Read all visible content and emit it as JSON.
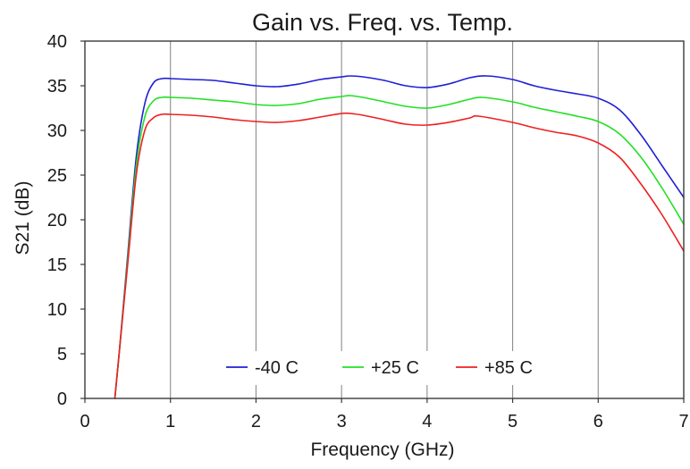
{
  "chart_data": {
    "type": "line",
    "title": "Gain vs. Freq. vs. Temp.",
    "xlabel": "Frequency (GHz)",
    "ylabel": "S21 (dB)",
    "xlim": [
      0,
      7
    ],
    "ylim": [
      0,
      40
    ],
    "x_ticks": [
      "0",
      "1",
      "2",
      "3",
      "4",
      "5",
      "6",
      "7"
    ],
    "y_ticks": [
      "0",
      "5",
      "10",
      "15",
      "20",
      "25",
      "30",
      "35",
      "40"
    ],
    "grid": {
      "x": true,
      "y": false
    },
    "legend_position": "bottom-center",
    "series": [
      {
        "name": "-40 C",
        "color": "#1f1fd6",
        "points": [
          [
            0.35,
            0
          ],
          [
            0.4,
            5
          ],
          [
            0.5,
            16
          ],
          [
            0.6,
            27
          ],
          [
            0.7,
            33
          ],
          [
            0.8,
            35.3
          ],
          [
            0.9,
            35.8
          ],
          [
            1.0,
            35.8
          ],
          [
            1.25,
            35.7
          ],
          [
            1.5,
            35.6
          ],
          [
            1.75,
            35.3
          ],
          [
            2.0,
            35.0
          ],
          [
            2.25,
            34.9
          ],
          [
            2.5,
            35.2
          ],
          [
            2.75,
            35.7
          ],
          [
            3.0,
            36.0
          ],
          [
            3.1,
            36.1
          ],
          [
            3.25,
            36.0
          ],
          [
            3.5,
            35.6
          ],
          [
            3.75,
            35.0
          ],
          [
            4.0,
            34.8
          ],
          [
            4.25,
            35.2
          ],
          [
            4.5,
            35.9
          ],
          [
            4.7,
            36.1
          ],
          [
            5.0,
            35.7
          ],
          [
            5.25,
            35.0
          ],
          [
            5.5,
            34.5
          ],
          [
            5.75,
            34.1
          ],
          [
            6.0,
            33.6
          ],
          [
            6.25,
            32.3
          ],
          [
            6.5,
            29.5
          ],
          [
            6.75,
            26.0
          ],
          [
            7.0,
            22.5
          ]
        ]
      },
      {
        "name": "+25 C",
        "color": "#22e022",
        "points": [
          [
            0.35,
            0
          ],
          [
            0.4,
            5
          ],
          [
            0.5,
            15.5
          ],
          [
            0.6,
            26
          ],
          [
            0.7,
            31.5
          ],
          [
            0.8,
            33.3
          ],
          [
            0.9,
            33.7
          ],
          [
            1.0,
            33.7
          ],
          [
            1.25,
            33.6
          ],
          [
            1.5,
            33.4
          ],
          [
            1.75,
            33.2
          ],
          [
            2.0,
            32.9
          ],
          [
            2.25,
            32.8
          ],
          [
            2.5,
            33.0
          ],
          [
            2.75,
            33.5
          ],
          [
            3.0,
            33.8
          ],
          [
            3.1,
            33.9
          ],
          [
            3.25,
            33.7
          ],
          [
            3.5,
            33.2
          ],
          [
            3.75,
            32.7
          ],
          [
            4.0,
            32.5
          ],
          [
            4.25,
            32.9
          ],
          [
            4.5,
            33.5
          ],
          [
            4.65,
            33.7
          ],
          [
            5.0,
            33.2
          ],
          [
            5.25,
            32.6
          ],
          [
            5.5,
            32.1
          ],
          [
            5.75,
            31.6
          ],
          [
            6.0,
            31.0
          ],
          [
            6.25,
            29.6
          ],
          [
            6.5,
            27.0
          ],
          [
            6.75,
            23.5
          ],
          [
            7.0,
            19.5
          ]
        ]
      },
      {
        "name": "+85 C",
        "color": "#ee2020",
        "points": [
          [
            0.35,
            0
          ],
          [
            0.4,
            5
          ],
          [
            0.5,
            15
          ],
          [
            0.6,
            25
          ],
          [
            0.7,
            30
          ],
          [
            0.8,
            31.4
          ],
          [
            0.9,
            31.8
          ],
          [
            1.0,
            31.8
          ],
          [
            1.25,
            31.7
          ],
          [
            1.5,
            31.5
          ],
          [
            1.75,
            31.2
          ],
          [
            2.0,
            31.0
          ],
          [
            2.25,
            30.9
          ],
          [
            2.5,
            31.1
          ],
          [
            2.75,
            31.5
          ],
          [
            3.0,
            31.9
          ],
          [
            3.1,
            31.9
          ],
          [
            3.25,
            31.7
          ],
          [
            3.5,
            31.2
          ],
          [
            3.75,
            30.7
          ],
          [
            4.0,
            30.6
          ],
          [
            4.25,
            30.9
          ],
          [
            4.5,
            31.4
          ],
          [
            4.6,
            31.6
          ],
          [
            5.0,
            30.9
          ],
          [
            5.25,
            30.3
          ],
          [
            5.5,
            29.8
          ],
          [
            5.75,
            29.4
          ],
          [
            6.0,
            28.6
          ],
          [
            6.25,
            27.0
          ],
          [
            6.5,
            24.0
          ],
          [
            6.75,
            20.5
          ],
          [
            7.0,
            16.5
          ]
        ]
      }
    ]
  }
}
